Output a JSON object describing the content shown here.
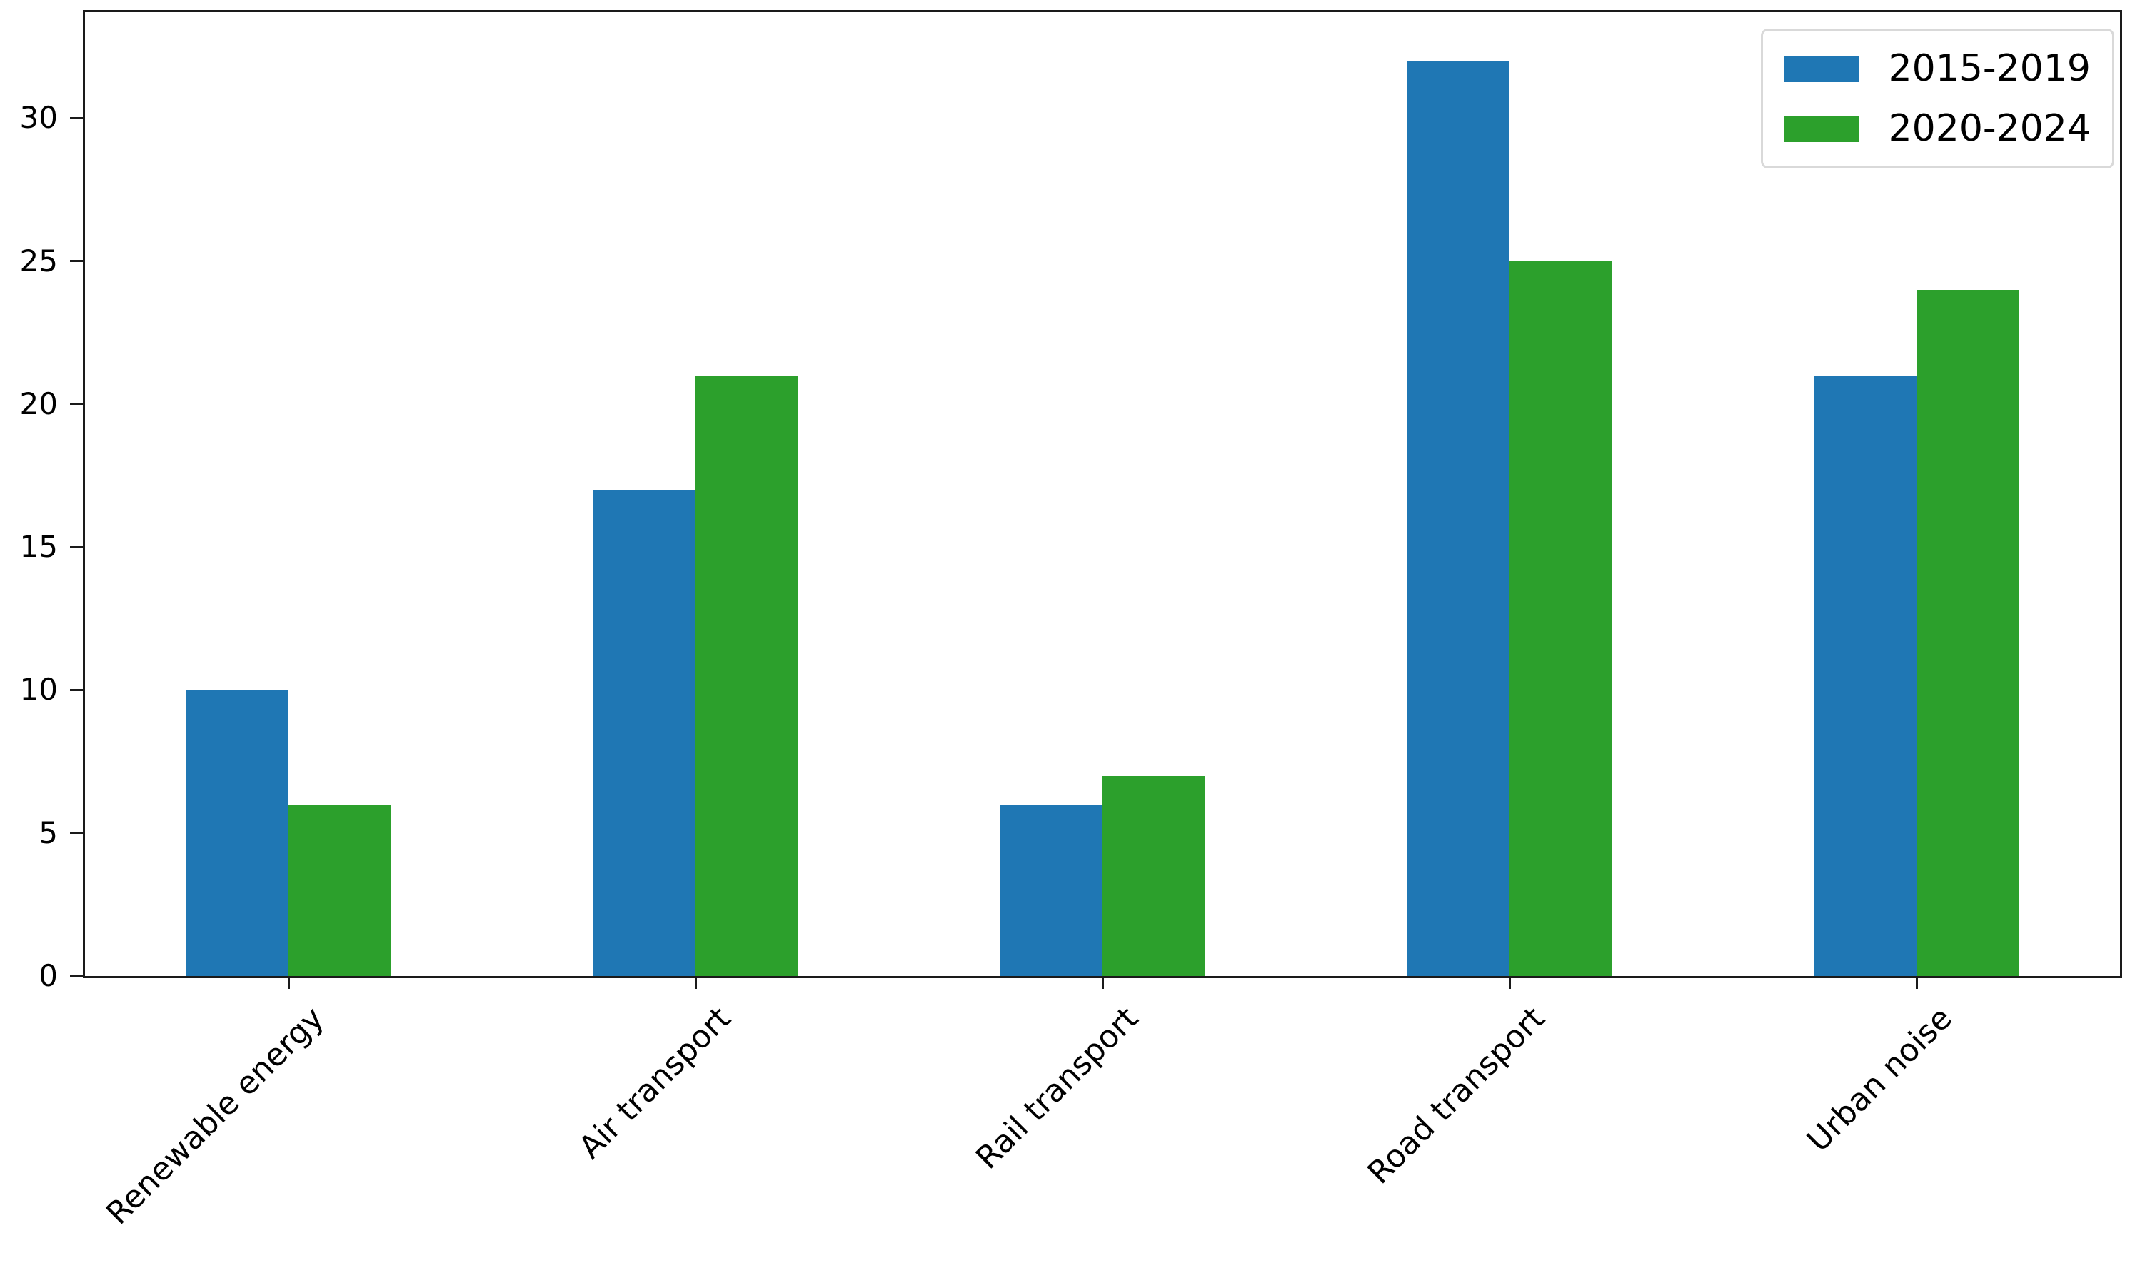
{
  "chart_data": {
    "type": "bar",
    "categories": [
      "Renewable energy",
      "Air transport",
      "Rail transport",
      "Road transport",
      "Urban noise"
    ],
    "series": [
      {
        "name": "2015-2019",
        "color": "#1f77b4",
        "values": [
          10,
          17,
          6,
          32,
          21
        ]
      },
      {
        "name": "2020-2024",
        "color": "#2ca02c",
        "values": [
          6,
          21,
          7,
          25,
          24
        ]
      }
    ],
    "yticks": [
      0,
      5,
      10,
      15,
      20,
      25,
      30
    ],
    "ylim": [
      0,
      33.7
    ],
    "grid": false,
    "legend_position": "upper right",
    "bar_width_ratio": 0.25,
    "x_tick_label_rotation_deg": 45
  },
  "colors": {
    "background": "#ffffff",
    "axis": "#1a1a1a",
    "text": "#000000",
    "legend_border": "#d9d9d9"
  }
}
